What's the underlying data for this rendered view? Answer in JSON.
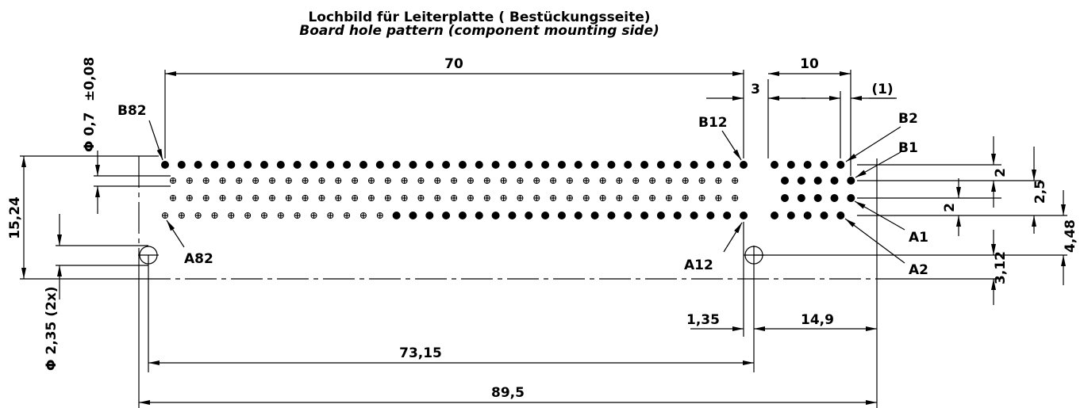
{
  "header": {
    "title": "Lochbild für Leiterplatte ( Bestückungsseite)",
    "subtitle": "Board hole pattern (component mounting side)"
  },
  "dimensions": {
    "width_70": "70",
    "gap_3": "3",
    "width_10": "10",
    "offset_1": "(1)",
    "hole_dia": "Φ 0,7",
    "hole_tol": "±0,08",
    "height": "15,24",
    "mount_dia": "Φ 2,35 (2x)",
    "row_pitch_a": "2",
    "row_pitch_b": "2,5",
    "row_pitch_c": "2",
    "mount_offset": "4,48",
    "edge_offset": "3,12",
    "mount_gap": "1,35",
    "right_width": "14,9",
    "mount_span": "73,15",
    "total_width": "89,5"
  },
  "pins": {
    "b82": "B82",
    "b12": "B12",
    "b2": "B2",
    "b1": "B1",
    "a1": "A1",
    "a2": "A2",
    "a82": "A82",
    "a12": "A12"
  }
}
